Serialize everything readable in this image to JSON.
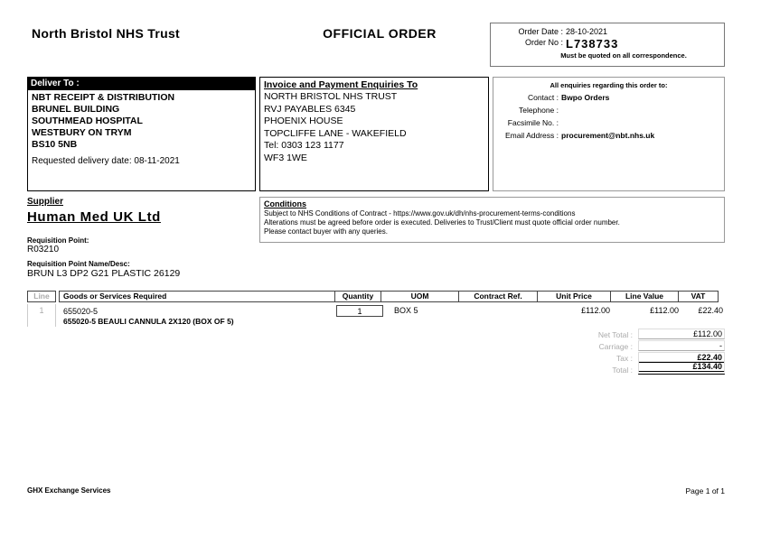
{
  "header": {
    "trust_name": "North Bristol NHS Trust",
    "title": "OFFICIAL ORDER"
  },
  "order_box": {
    "order_date_label": "Order Date :",
    "order_date": "28-10-2021",
    "order_no_label": "Order No :",
    "order_no": "L738733",
    "note": "Must be quoted on all correspondence."
  },
  "deliver_to": {
    "header": "Deliver To :",
    "lines": [
      "NBT RECEIPT & DISTRIBUTION",
      "BRUNEL BUILDING",
      "SOUTHMEAD HOSPITAL",
      "WESTBURY ON TRYM",
      "BS10 5NB"
    ],
    "requested_delivery": "Requested delivery date: 08-11-2021"
  },
  "invoice_to": {
    "header": "Invoice and Payment Enquiries To",
    "lines": [
      "NORTH BRISTOL NHS TRUST",
      "RVJ PAYABLES 6345",
      "PHOENIX HOUSE",
      "TOPCLIFFE LANE - WAKEFIELD",
      "Tel: 0303 123 1177",
      "WF3 1WE"
    ]
  },
  "enquiries": {
    "heading": "All enquiries regarding this order to:",
    "contact_label": "Contact :",
    "contact": "Bwpo Orders",
    "telephone_label": "Telephone :",
    "telephone": "",
    "facsimile_label": "Facsimile No. :",
    "facsimile": "",
    "email_label": "Email Address :",
    "email": "procurement@nbt.nhs.uk"
  },
  "supplier": {
    "label": "Supplier",
    "name": "Human Med UK Ltd",
    "requisition_point_label": "Requisition Point:",
    "requisition_point": "R03210",
    "requisition_name_label": "Requisition Point Name/Desc:",
    "requisition_name": "BRUN L3 DP2 G21 PLASTIC 26129"
  },
  "conditions": {
    "header": "Conditions",
    "lines": [
      "Subject to NHS Conditions of Contract - https://www.gov.uk/dh/nhs-procurement-terms-conditions",
      "Alterations must be agreed before order is executed. Deliveries to Trust/Client must quote official order number.",
      "Please contact buyer with any queries."
    ]
  },
  "table": {
    "headers": [
      "Line",
      "Goods or Services Required",
      "Quantity",
      "UOM",
      "Contract Ref.",
      "Unit Price",
      "Line Value",
      "VAT"
    ],
    "rows": [
      {
        "line": "1",
        "code": "655020-5",
        "description": "655020-5 BEAULI CANNULA 2X120 (BOX OF 5)",
        "quantity": "1",
        "uom": "BOX 5",
        "contract_ref": "",
        "unit_price": "£112.00",
        "line_value": "£112.00",
        "vat": "£22.40"
      }
    ]
  },
  "totals": {
    "net_total_label": "Net Total :",
    "net_total": "£112.00",
    "carriage_label": "Carriage :",
    "carriage": "-",
    "tax_label": "Tax :",
    "tax": "£22.40",
    "total_label": "Total :",
    "total": "£134.40"
  },
  "footer": {
    "left": "GHX Exchange Services",
    "right": "Page 1 of 1"
  }
}
